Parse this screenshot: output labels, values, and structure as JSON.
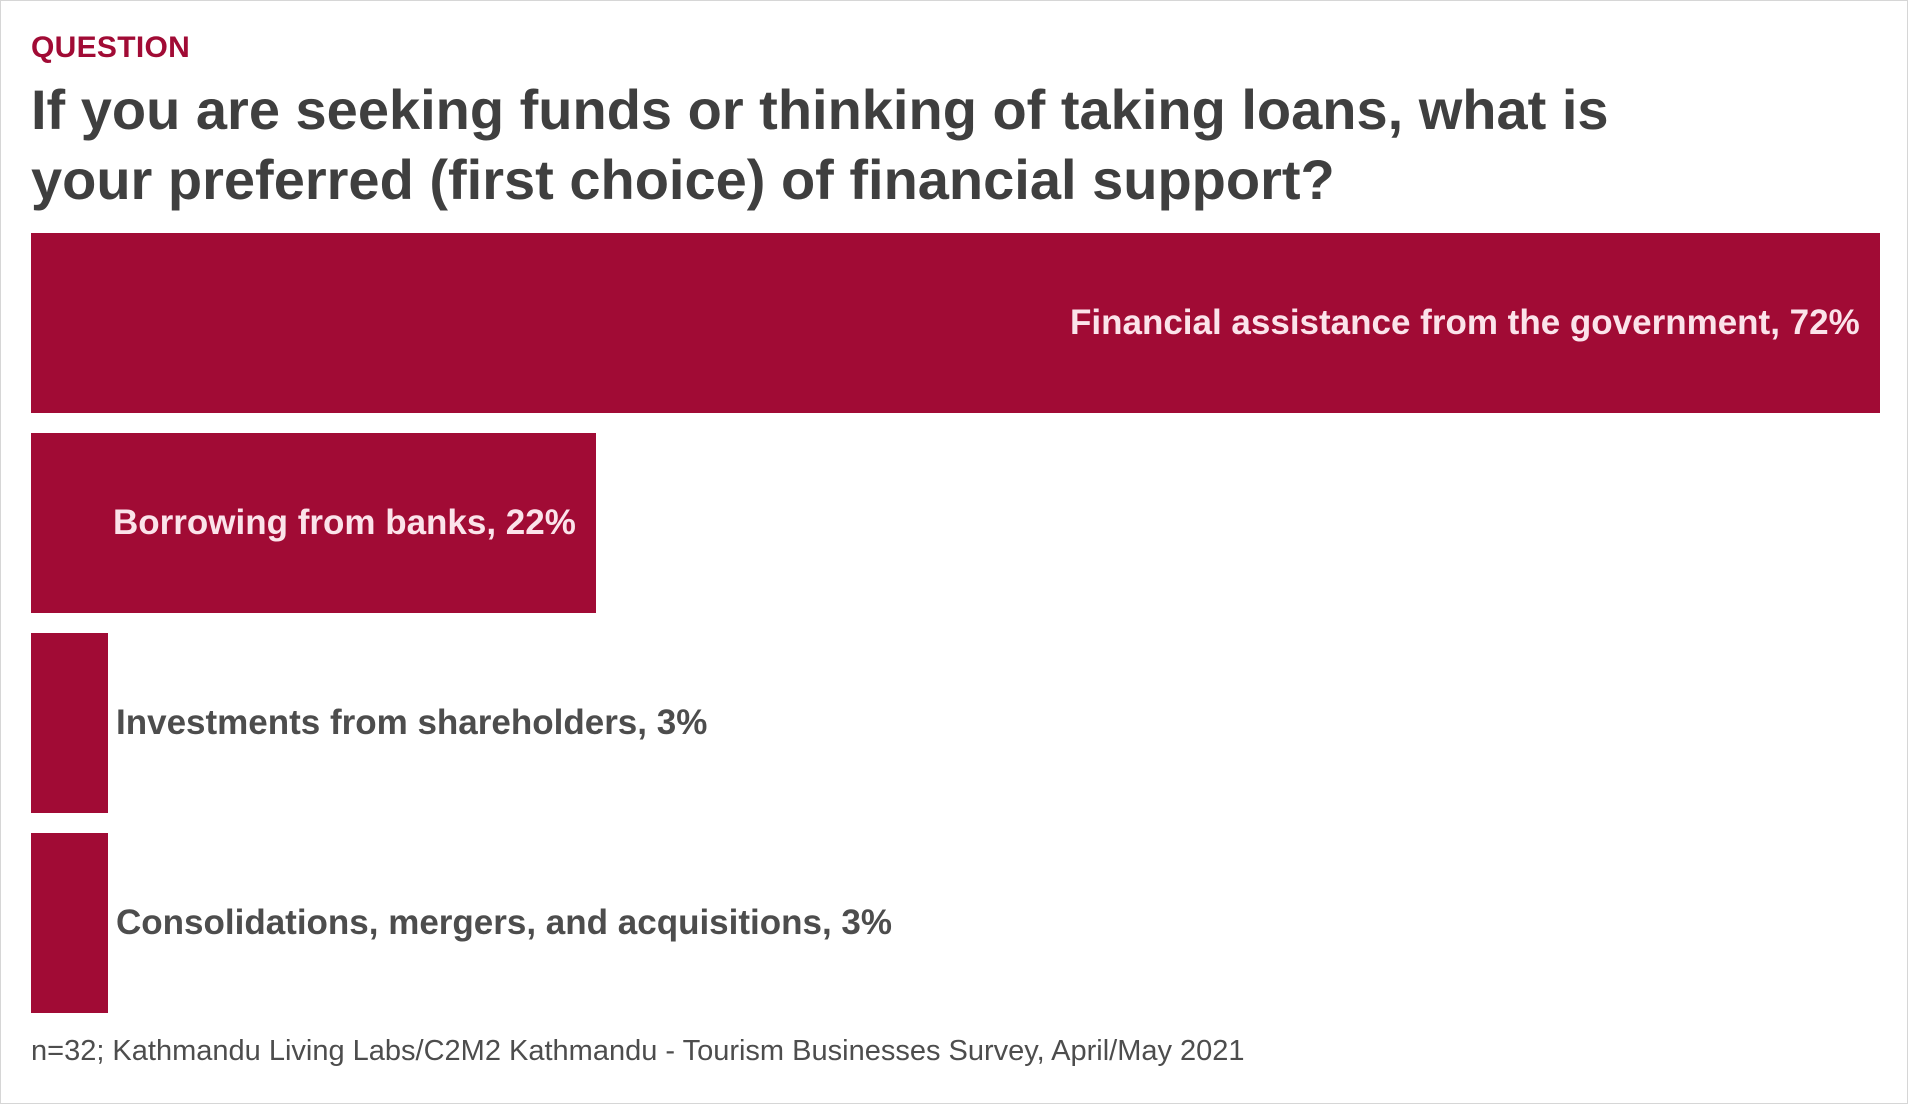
{
  "header": {
    "eyebrow": "QUESTION",
    "title": "If you are seeking funds or thinking of taking loans, what is your preferred (first choice) of financial support?"
  },
  "colors": {
    "bar": "#a10b35",
    "label_outside": "#4d4d4d",
    "label_inside": "#fbe3ea",
    "title": "#3f3f3f",
    "eyebrow": "#a10b35"
  },
  "chart_data": {
    "type": "bar",
    "orientation": "horizontal",
    "categories": [
      "Financial assistance from the government",
      "Borrowing from banks",
      "Investments from shareholders",
      "Consolidations, mergers, and acquisitions"
    ],
    "values": [
      72,
      22,
      3,
      3
    ],
    "unit": "%",
    "labels": [
      "Financial assistance from the government, 72%",
      "Borrowing from banks, 22%",
      "Investments from shareholders, 3%",
      "Consolidations, mergers, and acquisitions, 3%"
    ],
    "xlim": [
      0,
      72
    ],
    "grid": false,
    "legend": "none"
  },
  "footer": {
    "source": "n=32; Kathmandu Living Labs/C2M2 Kathmandu - Tourism Businesses Survey, April/May 2021"
  }
}
